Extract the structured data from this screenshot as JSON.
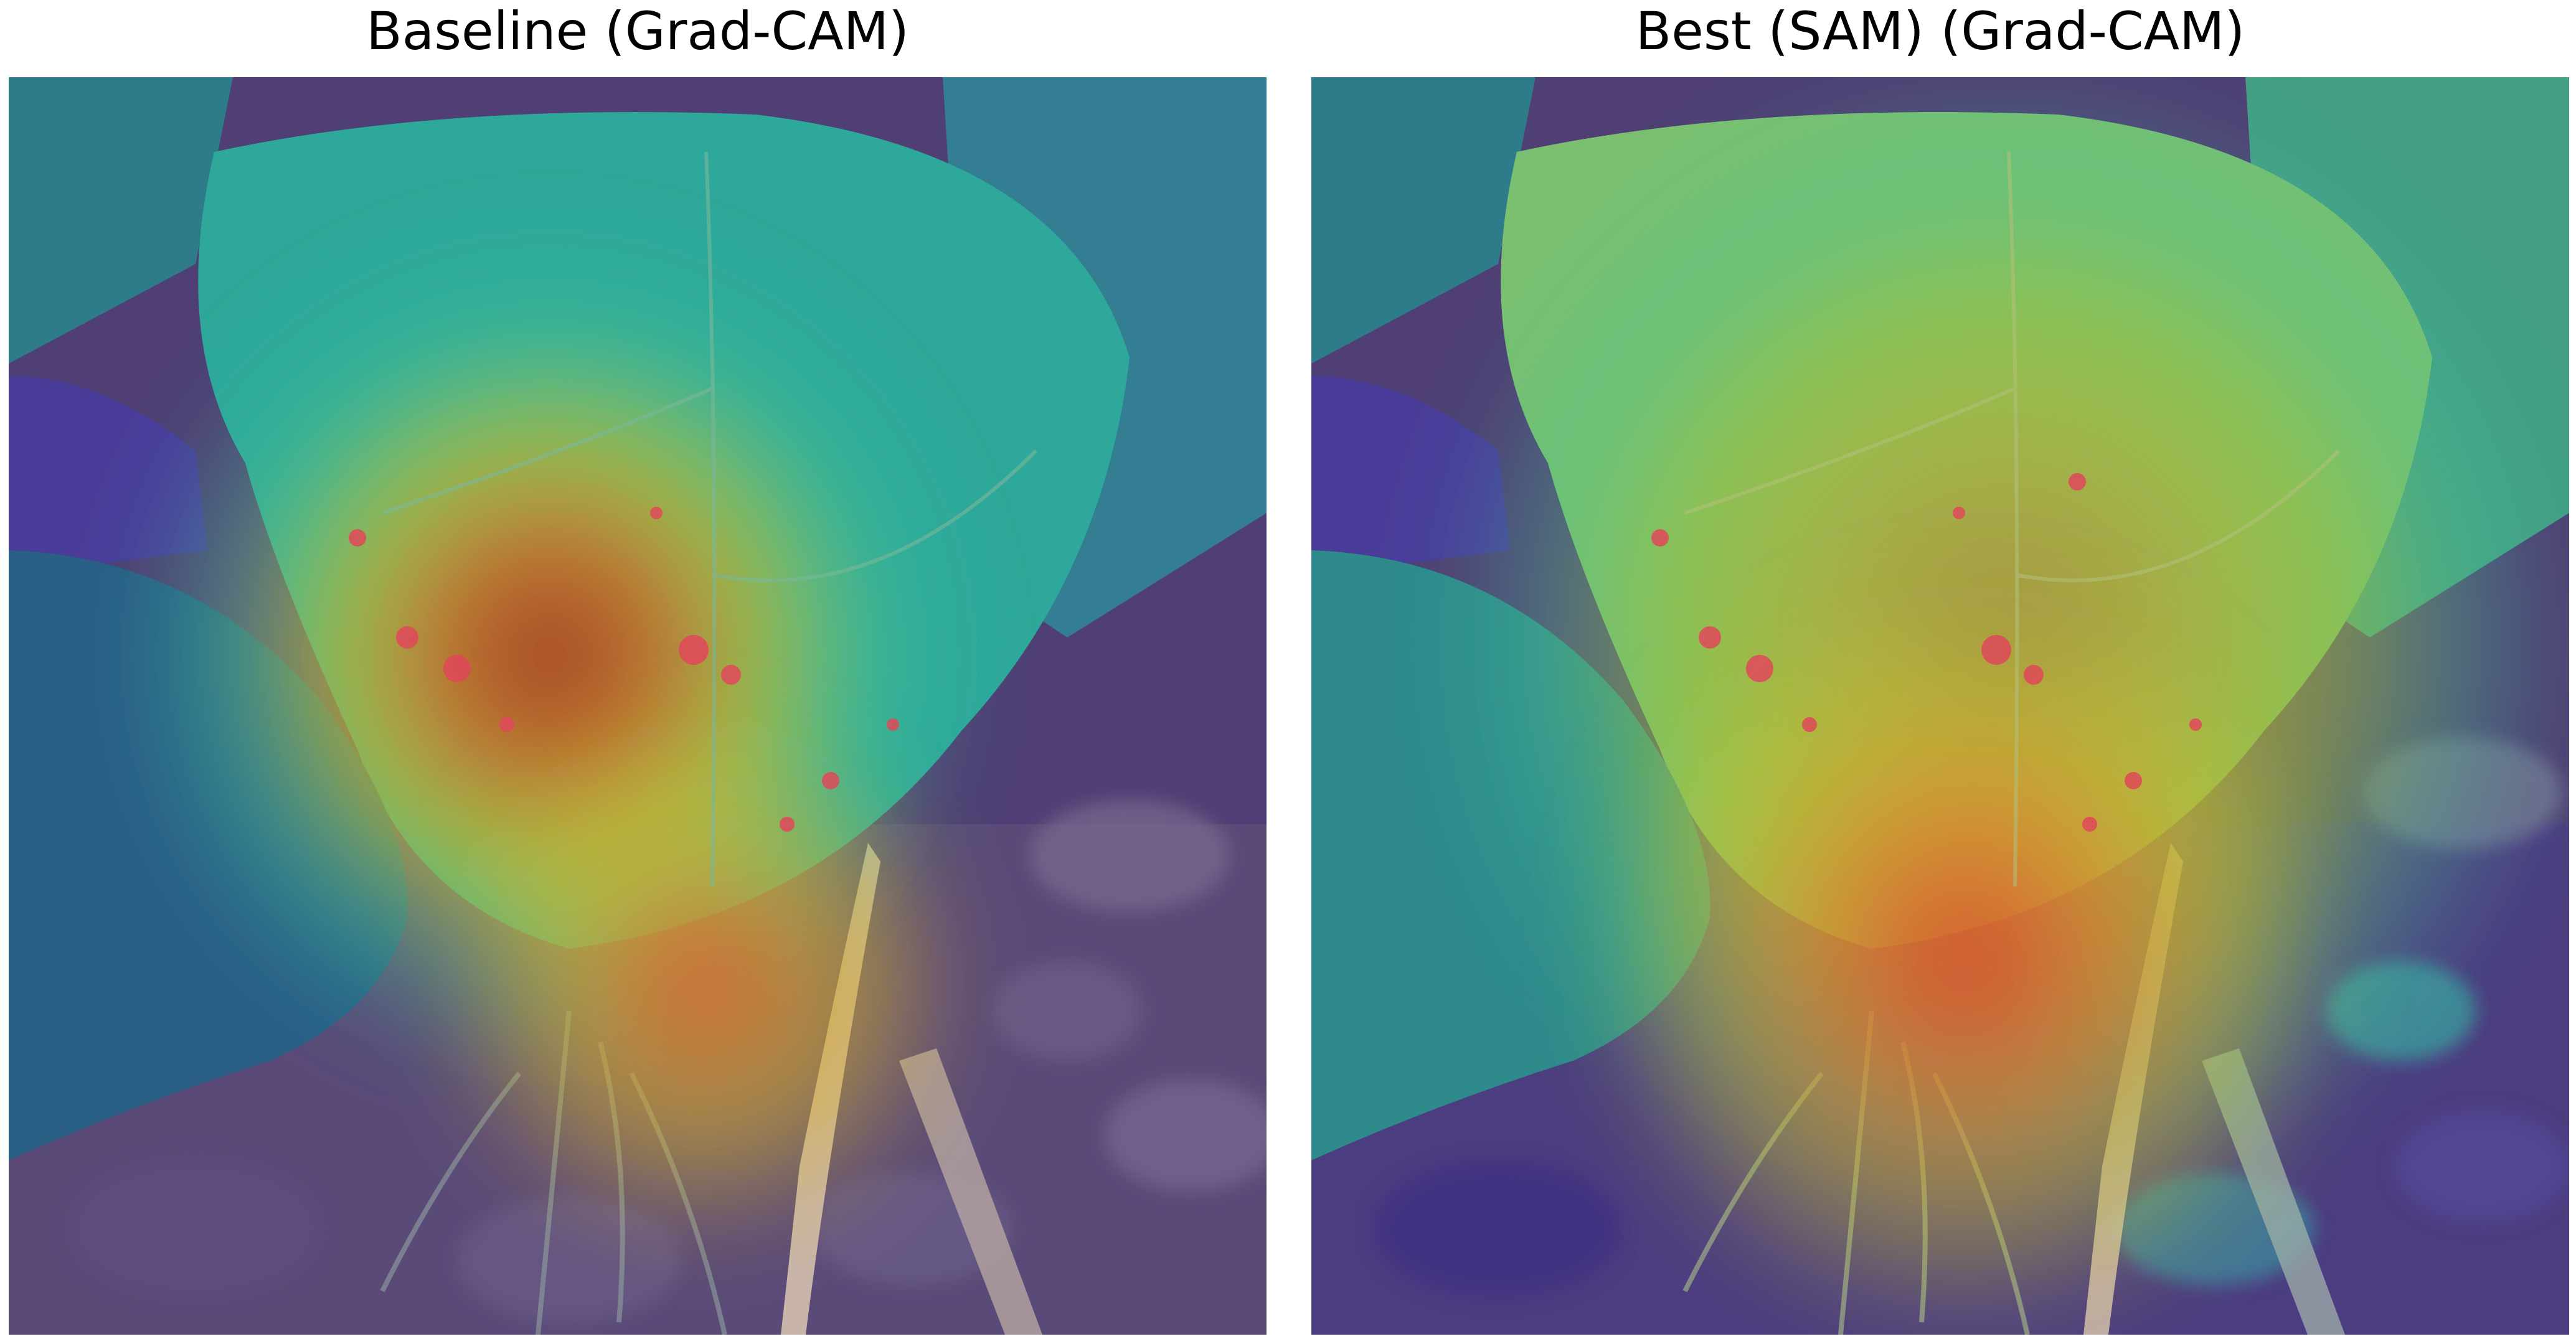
{
  "panels": [
    {
      "id": "baseline",
      "title": "Baseline (Grad-CAM)"
    },
    {
      "id": "best-sam",
      "title": "Best (SAM) (Grad-CAM)"
    }
  ],
  "colors": {
    "colormap": "jet",
    "low": "#3a2fa0",
    "mid": "#34c4a0",
    "high": "#e8302a",
    "background": "#ffffff"
  }
}
